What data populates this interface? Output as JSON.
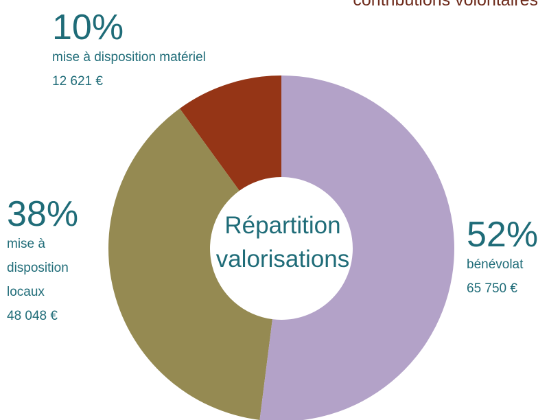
{
  "chart_data": {
    "type": "donut",
    "title": "contributions volontaires",
    "center_label": [
      "Répartition",
      "valorisations"
    ],
    "categories": [
      "bénévolat",
      "mise à disposition locaux",
      "mise à disposition matériel"
    ],
    "values": [
      52,
      38,
      10
    ],
    "value_labels": [
      "52%",
      "38%",
      "10%"
    ],
    "amounts": [
      65750,
      48048,
      12621
    ],
    "amount_labels": [
      "65 750 €",
      "48 048 €",
      "12 621 €"
    ],
    "colors": [
      "#b3a2c8",
      "#958a52",
      "#953516"
    ]
  }
}
